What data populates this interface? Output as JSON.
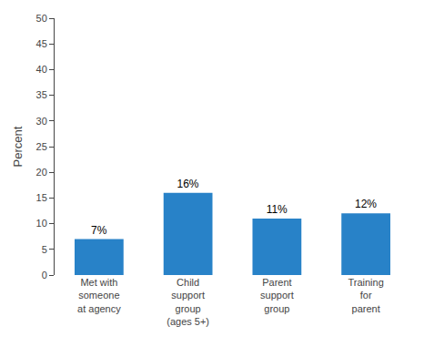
{
  "chart_data": {
    "type": "bar",
    "ylabel": "Percent",
    "categories": [
      "Met with\nsomeone\nat agency",
      "Child\nsupport\ngroup\n(ages 5+)",
      "Parent\nsupport\ngroup",
      "Training\nfor\nparent"
    ],
    "values": [
      7,
      16,
      11,
      12
    ],
    "value_labels": [
      "7%",
      "16%",
      "11%",
      "12%"
    ],
    "data_labels": true,
    "color": "#2882c8",
    "ylim": [
      0,
      50
    ],
    "yticks": [
      0,
      5,
      10,
      15,
      20,
      25,
      30,
      35,
      40,
      45,
      50
    ],
    "grid": false
  }
}
